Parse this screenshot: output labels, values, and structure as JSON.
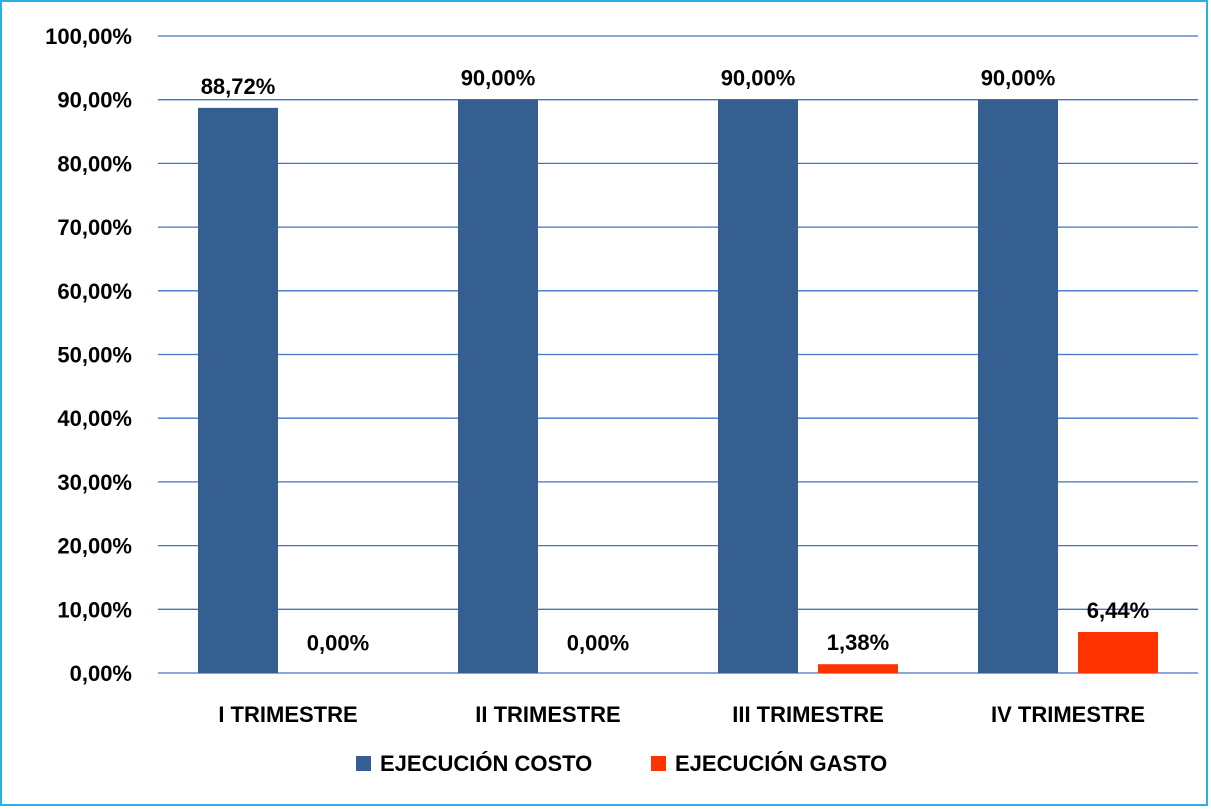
{
  "chart_data": {
    "type": "bar",
    "title": "",
    "xlabel": "",
    "ylabel": "",
    "categories": [
      "I TRIMESTRE",
      "II TRIMESTRE",
      "III TRIMESTRE",
      "IV TRIMESTRE"
    ],
    "series": [
      {
        "name": "EJECUCIÓN COSTO",
        "color": "#355e91",
        "values": [
          88.72,
          90.0,
          90.0,
          90.0
        ],
        "labels": [
          "88,72%",
          "90,00%",
          "90,00%",
          "90,00%"
        ]
      },
      {
        "name": "EJECUCIÓN GASTO",
        "color": "#ff3300",
        "values": [
          0.0,
          0.0,
          1.38,
          6.44
        ],
        "labels": [
          "0,00%",
          "0,00%",
          "1,38%",
          "6,44%"
        ]
      }
    ],
    "ylim": [
      0,
      100
    ],
    "yticks": [
      0,
      10,
      20,
      30,
      40,
      50,
      60,
      70,
      80,
      90,
      100
    ],
    "ytick_labels": [
      "0,00%",
      "10,00%",
      "20,00%",
      "30,00%",
      "40,00%",
      "50,00%",
      "60,00%",
      "70,00%",
      "80,00%",
      "90,00%",
      "100,00%"
    ],
    "grid": true,
    "gridline_color": "#4472c4",
    "legend_position": "bottom"
  }
}
